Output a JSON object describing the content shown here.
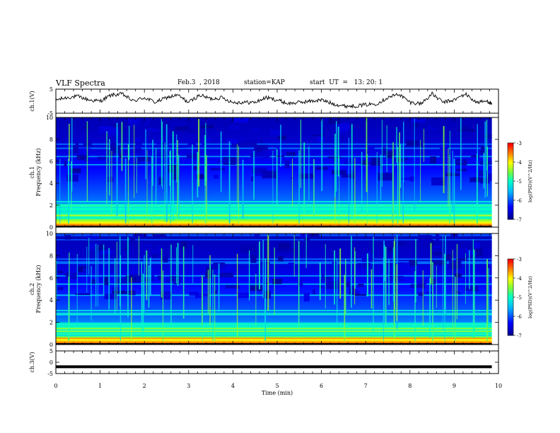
{
  "header": {
    "title": "VLF Spectra",
    "date": "Feb.3  , 2018",
    "station": "station=KAP",
    "start_ut": "start  UT  =   13: 20: 1"
  },
  "chart_data": [
    {
      "type": "line",
      "ylabel": "ch.1(V)",
      "ylim": [
        -5,
        5
      ],
      "yticks": [
        "5",
        "-5"
      ],
      "xlim": [
        0,
        10
      ],
      "series": [
        {
          "x": [
            0.0,
            0.25,
            0.5,
            0.75,
            1.0,
            1.25,
            1.5,
            1.75,
            2.0,
            2.25,
            2.5,
            2.75,
            3.0,
            3.25,
            3.5,
            3.75,
            4.0,
            4.25,
            4.5,
            4.75,
            5.0,
            5.25,
            5.5,
            5.75,
            6.0,
            6.25,
            6.5,
            6.75,
            7.0,
            7.25,
            7.5,
            7.75,
            8.0,
            8.25,
            8.5,
            8.75,
            9.0,
            9.25,
            9.5,
            9.75,
            9.85
          ],
          "values": [
            0.5,
            1.5,
            2.0,
            0.5,
            0.0,
            2.5,
            3.0,
            0.0,
            1.5,
            -0.5,
            1.5,
            2.5,
            -0.5,
            2.5,
            1.0,
            1.5,
            -0.5,
            -0.5,
            -0.5,
            1.5,
            0.5,
            -1.0,
            -0.5,
            0.0,
            0.5,
            -1.0,
            -2.0,
            -2.0,
            -1.5,
            -1.0,
            1.5,
            3.0,
            -0.5,
            -1.0,
            3.0,
            -0.5,
            0.5,
            3.0,
            -0.5,
            0.0,
            -1.0
          ]
        }
      ]
    },
    {
      "type": "heatmap",
      "ylabel": "ch.1  Frequency (kHz)",
      "ylim": [
        0,
        10
      ],
      "yticks": [
        "0",
        "2",
        "4",
        "6",
        "8",
        "10"
      ],
      "xlim": [
        0,
        10
      ],
      "colorbar": {
        "label": "log(PSD)(V^2/Hz)",
        "ticks": [
          "-3",
          "-4",
          "-5",
          "-6",
          "-7"
        ]
      }
    },
    {
      "type": "heatmap",
      "ylabel": "ch.2  Frequency (kHz)",
      "ylim": [
        0,
        10
      ],
      "yticks": [
        "0",
        "2",
        "4",
        "6",
        "8",
        "10"
      ],
      "xlim": [
        0,
        10
      ],
      "colorbar": {
        "label": "log(PSD)(V^2/Hz)",
        "ticks": [
          "-3",
          "-4",
          "-5",
          "-6",
          "-7"
        ]
      }
    },
    {
      "type": "line",
      "ylabel": "ch.3(V)",
      "ylim": [
        -5,
        5
      ],
      "yticks": [
        "5",
        "0",
        "-5"
      ],
      "xlim": [
        0,
        10
      ],
      "xlabel": "Time (min)",
      "xticks": [
        "0",
        "1",
        "2",
        "3",
        "4",
        "5",
        "6",
        "7",
        "8",
        "9",
        "10"
      ],
      "series": [
        {
          "x": [
            0,
            9.85
          ],
          "values": [
            -2,
            -2
          ]
        }
      ]
    }
  ]
}
